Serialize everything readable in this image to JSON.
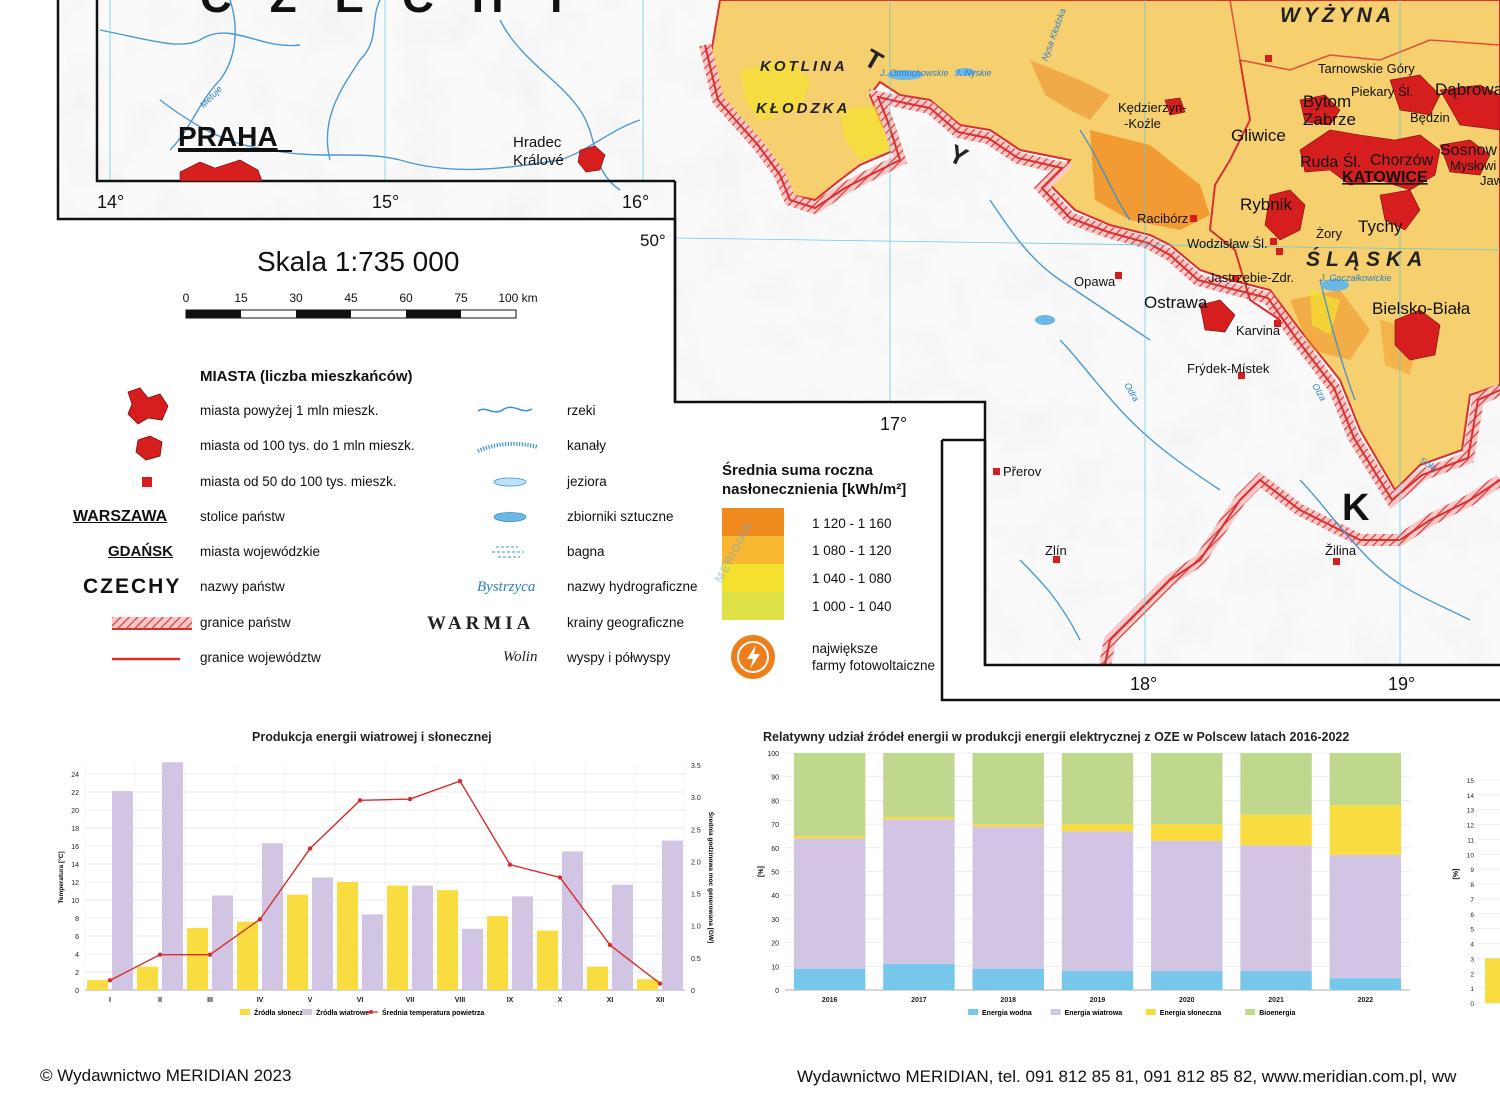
{
  "map": {
    "country_labels": {
      "czechy_top": "CZECHY",
      "k_letter": "K"
    },
    "city_labels": {
      "praha": "PRAHA",
      "hradec": "Hradec",
      "kralove": "Králové",
      "katowice": "KATOWICE",
      "opawa": "Opawa",
      "ostrawa": "Ostrawa",
      "karvina": "Karvina",
      "frydek": "Frýdek-Místek",
      "prerov": "Přerov",
      "zlin": "Zlín",
      "zilina": "Žilina",
      "tarnowskie": "Tarnowskie Góry",
      "piekary": "Piekary Śl.",
      "dabrowa": "Dąbrowa",
      "bytom": "Bytom",
      "zabrze": "Zabrze",
      "bedzin": "Będzin",
      "gliwice": "Gliwice",
      "sosnowiec": "Sosnow",
      "myslowice": "Mysłowi",
      "ruda": "Ruda Śl.",
      "chorzow": "Chorzów",
      "jaw": "Jaw",
      "kedzierzyn": "Kędzierzyn-",
      "kozle": "-Koźle",
      "rybnik": "Rybnik",
      "raciborz": "Racibórz",
      "tychy": "Tychy",
      "zory": "Żory",
      "wodzislaw": "Wodzisław Śl.",
      "jastrzebie": "Jastrzębie-Zdr.",
      "bielsko": "Bielsko-Biała"
    },
    "region_labels": {
      "wyzyna": "WYŻYNA",
      "slaska": "ŚLĄSKA",
      "kotlina": "KOTLINA",
      "klodzka": "KŁODZKA",
      "t": "T",
      "y": "Y"
    },
    "water_labels": {
      "metuje": "Metuje",
      "odra": "Odra",
      "olza": "Olza",
      "sola": "Soła",
      "otmuchowskie": "J. Otmuchowskie",
      "nyskie": "J. Nyskie",
      "goczalkowickie": "J. Goczałkowickie",
      "kl_nysa": "Nysa Kłodzka"
    },
    "coordinates": {
      "lon14": "14°",
      "lon15": "15°",
      "lon16": "16°",
      "lon17": "17°",
      "lon18": "18°",
      "lon19": "19°",
      "lat50": "50°"
    }
  },
  "legend": {
    "scale_title": "Skala 1:735 000",
    "scale_ticks": [
      "0",
      "15",
      "30",
      "45",
      "60",
      "75",
      "100 km"
    ],
    "cities_header": "MIASTA (liczba mieszkańców)",
    "left_items": [
      {
        "sample": "",
        "label": "miasta powyżej 1 mln mieszk."
      },
      {
        "sample": "",
        "label": "miasta od 100 tys. do 1 mln mieszk."
      },
      {
        "sample": "",
        "label": "miasta od 50 do 100 tys. mieszk."
      },
      {
        "sample": "WARSZAWA",
        "label": "stolice państw"
      },
      {
        "sample": "GDAŃSK",
        "label": "miasta wojewódzkie"
      },
      {
        "sample": "CZECHY",
        "label": "nazwy państw"
      },
      {
        "sample": "",
        "label": "granice państw"
      },
      {
        "sample": "",
        "label": "granice województw"
      }
    ],
    "right_items": [
      {
        "sample": "",
        "label": "rzeki"
      },
      {
        "sample": "",
        "label": "kanały"
      },
      {
        "sample": "",
        "label": "jeziora"
      },
      {
        "sample": "",
        "label": "zbiorniki sztuczne"
      },
      {
        "sample": "",
        "label": "bagna"
      },
      {
        "sample": "Bystrzyca",
        "label": "nazwy hydrograficzne"
      },
      {
        "sample": "WARMIA",
        "label": "krainy geograficzne"
      },
      {
        "sample": "Wolin",
        "label": "wyspy i półwyspy"
      }
    ],
    "insolation_title_1": "Średnia suma roczna",
    "insolation_title_2": "nasłonecznienia [kWh/m²]",
    "insolation_classes": [
      {
        "label": "1 120 - 1 160",
        "color": "#ef8a1f"
      },
      {
        "label": "1 080 - 1 120",
        "color": "#f7b731"
      },
      {
        "label": "1 040 - 1 080",
        "color": "#f4e12e"
      },
      {
        "label": "1 000 - 1 040",
        "color": "#dfe045"
      }
    ],
    "pv_label_1": "największe",
    "pv_label_2": "farmy fotowoltaiczne",
    "watermark": "MERIDIAN"
  },
  "chart_data": [
    {
      "type": "bar",
      "title": "Produkcja energii wiatrowej i słonecznej",
      "categories": [
        "I",
        "II",
        "III",
        "IV",
        "V",
        "VI",
        "VII",
        "VIII",
        "IX",
        "X",
        "XI",
        "XII"
      ],
      "ylabel": "Temperatura [°C]",
      "y2label": "Średnia godzinowa moc generowana [GW]",
      "ylim": [
        0,
        25
      ],
      "y2lim": [
        0,
        3.5
      ],
      "yticks": [
        0,
        2,
        4,
        6,
        8,
        10,
        12,
        14,
        16,
        18,
        20,
        22,
        24
      ],
      "y2ticks": [
        "0",
        "0.5",
        "1.0",
        "1.5",
        "2.0",
        "2.5",
        "3.0",
        "3.5"
      ],
      "series": [
        {
          "name": "Źródła słoneczne",
          "color": "#f9dc3f",
          "values": [
            1.1,
            2.6,
            6.9,
            7.6,
            10.6,
            12.0,
            11.6,
            11.1,
            8.2,
            6.6,
            2.6,
            1.2
          ]
        },
        {
          "name": "Źródła wiatrowe",
          "color": "#d2c5e3",
          "values": [
            22.1,
            25.3,
            10.5,
            16.3,
            12.5,
            8.4,
            11.6,
            6.8,
            10.4,
            15.4,
            11.7,
            16.6
          ]
        },
        {
          "name": "Średnia temperatura powietrza",
          "color": "#d62c2c",
          "type": "line",
          "values": [
            0.15,
            0.55,
            0.55,
            1.1,
            2.2,
            2.95,
            2.97,
            3.25,
            1.95,
            1.75,
            0.7,
            0.1
          ]
        }
      ]
    },
    {
      "type": "bar",
      "stacked": true,
      "title": "Relatywny udział źródeł energii w produkcji energii elektrycznej z OZE w Polscew latach 2016-2022",
      "categories": [
        "2016",
        "2017",
        "2018",
        "2019",
        "2020",
        "2021",
        "2022"
      ],
      "ylabel": "[%]",
      "ylim": [
        0,
        100
      ],
      "yticks": [
        0,
        10,
        20,
        30,
        40,
        50,
        60,
        70,
        80,
        90,
        100
      ],
      "series": [
        {
          "name": "Energia wodna",
          "color": "#76c7ea",
          "values": [
            9,
            11,
            9,
            8,
            8,
            8,
            5
          ]
        },
        {
          "name": "Energia wiatrowa",
          "color": "#d2c5e3",
          "values": [
            55,
            61,
            60,
            59,
            55,
            53,
            52
          ]
        },
        {
          "name": "Energia słoneczna",
          "color": "#f9dc3f",
          "values": [
            1,
            1,
            1,
            3,
            7,
            13,
            21
          ]
        },
        {
          "name": "Bioenergia",
          "color": "#bfd88d",
          "values": [
            35,
            27,
            30,
            30,
            30,
            26,
            22
          ]
        }
      ]
    },
    {
      "type": "bar",
      "title": "",
      "ylabel": "[%]",
      "yticks": [
        0,
        1,
        2,
        3,
        4,
        5,
        6,
        7,
        8,
        9,
        10,
        11,
        12,
        13,
        14,
        15
      ],
      "ylim": [
        0,
        16
      ],
      "series": [
        {
          "name": "",
          "color": "#f9dc3f",
          "values": [
            3
          ]
        }
      ]
    }
  ],
  "footer": {
    "copyright": "© Wydawnictwo MERIDIAN 2023",
    "contact": "Wydawnictwo MERIDIAN, tel. 091 812 85 81, 091 812 85 82, www.meridian.com.pl, ww"
  }
}
